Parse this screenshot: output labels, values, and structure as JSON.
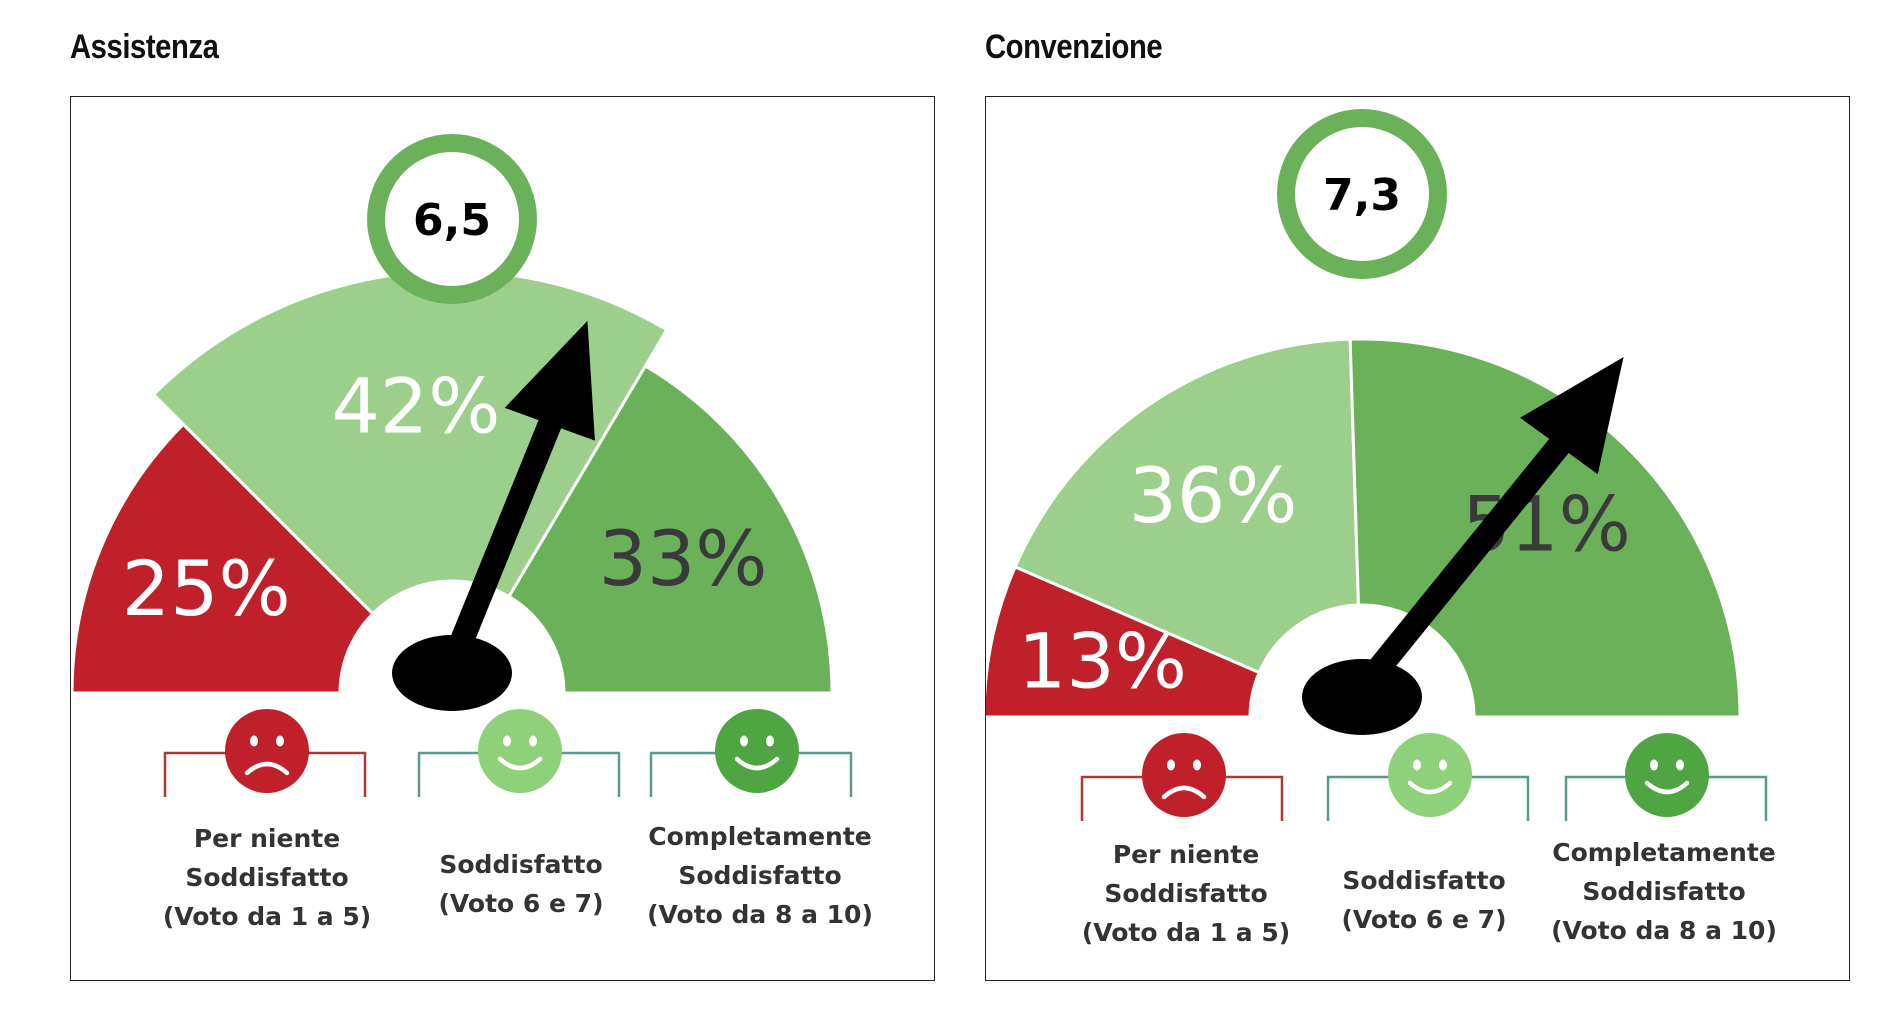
{
  "chart_data": [
    {
      "type": "gauge",
      "title": "Assistenza",
      "score": "6,5",
      "score_value": 6.5,
      "slices": [
        {
          "name": "Per niente Soddisfatto (Voto da 1 a 5)",
          "value": 25,
          "label": "25%",
          "color": "#c0202a"
        },
        {
          "name": "Soddisfatto (Voto 6 e 7)",
          "value": 42,
          "label": "42%",
          "color": "#9ccf8c"
        },
        {
          "name": "Completamente Soddisfatto (Voto da 8 a 10)",
          "value": 33,
          "label": "33%",
          "color": "#6ab15a"
        }
      ],
      "categories": [
        {
          "line1": "Per niente",
          "line2": "Soddisfatto",
          "line3": "(Voto da 1 a 5)",
          "face": "sad-face-icon",
          "color": "#c0202a"
        },
        {
          "line1": "Soddisfatto",
          "line2": "(Voto 6 e 7)",
          "line3": "",
          "face": "smile-face-icon",
          "color": "#8fd07b"
        },
        {
          "line1": "Completamente",
          "line2": "Soddisfatto",
          "line3": "(Voto da 8  a 10)",
          "face": "smile-face-icon",
          "color": "#4ea542"
        }
      ]
    },
    {
      "type": "gauge",
      "title": "Convenzione",
      "score": "7,3",
      "score_value": 7.3,
      "slices": [
        {
          "name": "Per niente Soddisfatto (Voto da 1 a 5)",
          "value": 13,
          "label": "13%",
          "color": "#c0202a"
        },
        {
          "name": "Soddisfatto (Voto 6 e 7)",
          "value": 36,
          "label": "36%",
          "color": "#9ccf8c"
        },
        {
          "name": "Completamente Soddisfatto (Voto da 8 a 10)",
          "value": 51,
          "label": "51%",
          "color": "#6ab15a"
        }
      ],
      "categories": [
        {
          "line1": "Per niente",
          "line2": "Soddisfatto",
          "line3": "(Voto da 1 a 5)",
          "face": "sad-face-icon",
          "color": "#c0202a"
        },
        {
          "line1": "Soddisfatto",
          "line2": "(Voto 6 e 7)",
          "line3": "",
          "face": "smile-face-icon",
          "color": "#8fd07b"
        },
        {
          "line1": "Completamente",
          "line2": "Soddisfatto",
          "line3": "(Voto da 8  a 10)",
          "face": "smile-face-icon",
          "color": "#4ea542"
        }
      ]
    }
  ],
  "colors": {
    "ring": "#6ab15a",
    "needle": "#000000",
    "bracket_red": "#a83a3a",
    "bracket_teal": "#5a9a8e",
    "label_light": "#ffffff",
    "label_dark": "#3a3a3a"
  }
}
